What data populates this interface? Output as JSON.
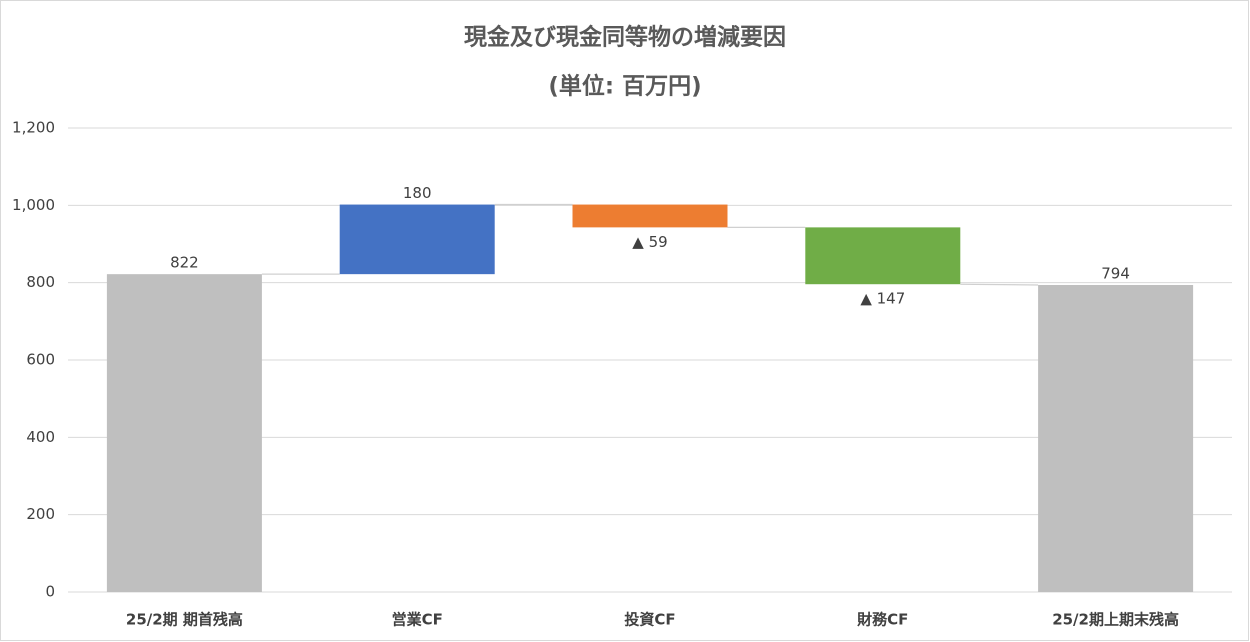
{
  "chart_data": {
    "type": "waterfall",
    "title": "現金及び現金同等物の増減要因",
    "subtitle": "(単位: 百万円)",
    "categories": [
      "25/2期 期首残高",
      "営業CF",
      "投資CF",
      "財務CF",
      "25/2期上期末残高"
    ],
    "values": [
      822,
      180,
      -59,
      -147,
      794
    ],
    "value_labels": [
      "822",
      "180",
      "▲ 59",
      "▲ 147",
      "794"
    ],
    "totals": [
      true,
      false,
      false,
      false,
      true
    ],
    "colors": [
      "#bfbfbf",
      "#4472c4",
      "#ed7d31",
      "#70ad47",
      "#bfbfbf"
    ],
    "ylim": [
      0,
      1200
    ],
    "yticks": [
      0,
      200,
      400,
      600,
      800,
      {
        "value": 1000,
        "label": "1,000"
      },
      {
        "value": 1200,
        "label": "1,200"
      }
    ],
    "grid": true
  }
}
